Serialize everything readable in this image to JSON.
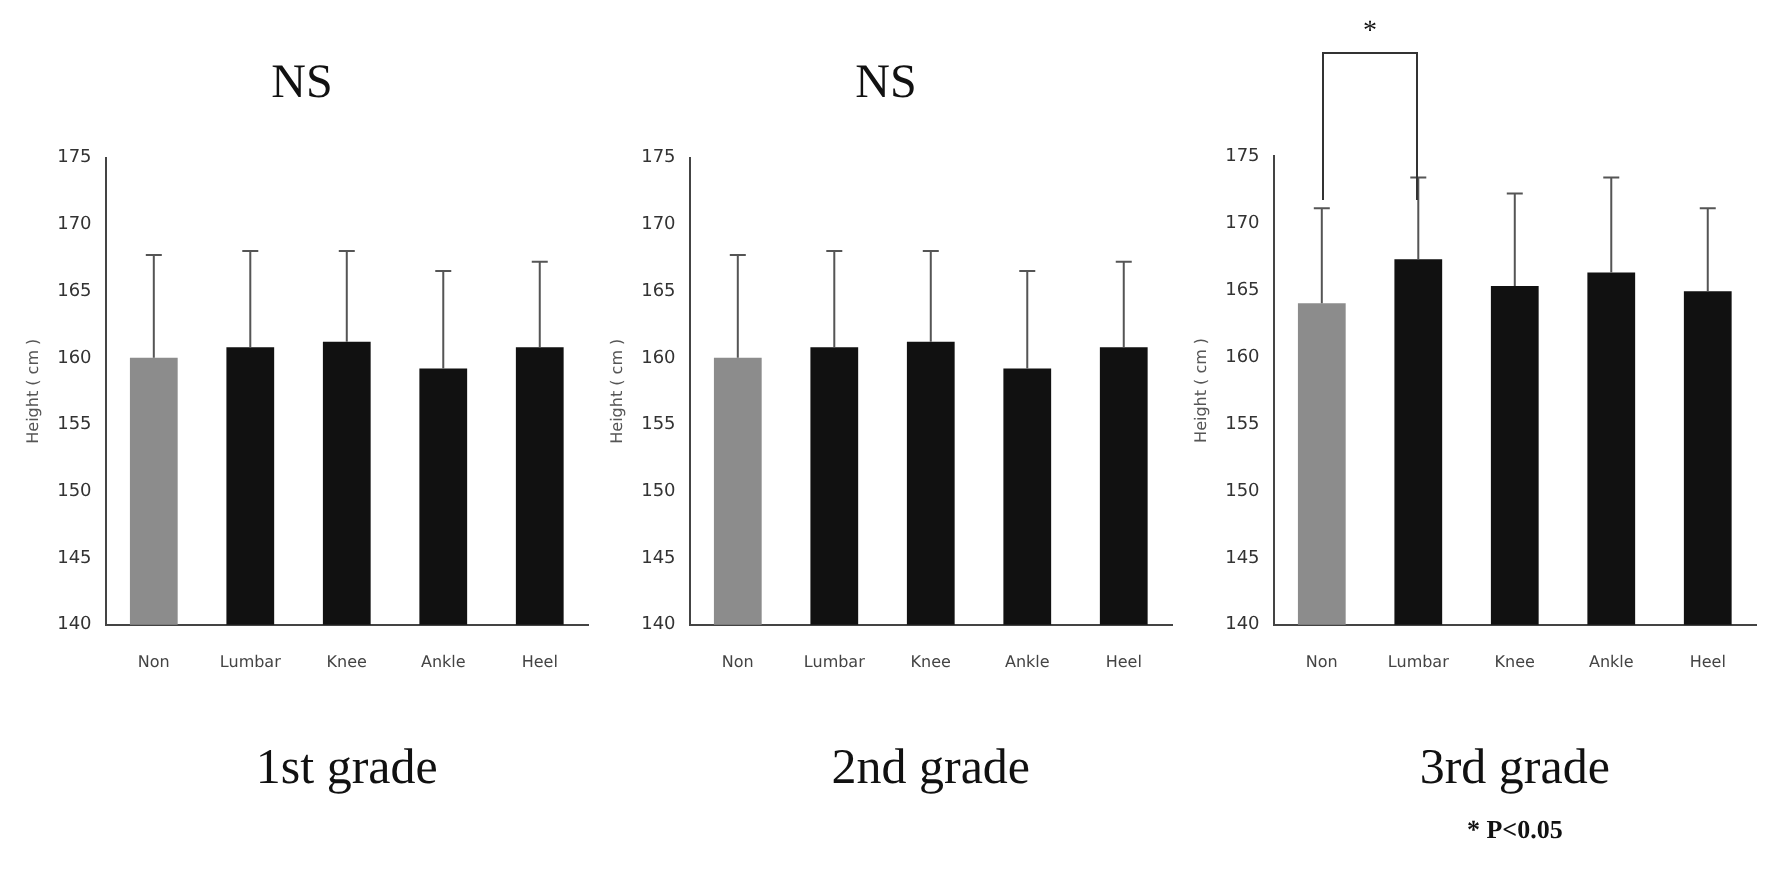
{
  "chart_data": [
    {
      "type": "bar",
      "title": "NS",
      "xlabel": "1st grade",
      "ylabel": "Height ( cm )",
      "categories": [
        "Non",
        "Lumbar",
        "Knee",
        "Ankle",
        "Heel"
      ],
      "values": [
        160,
        160.8,
        161.2,
        159.2,
        160.8
      ],
      "colors": [
        "#8c8c8c",
        "#111111",
        "#111111",
        "#111111",
        "#111111"
      ],
      "errors": [
        [
          160,
          167.7
        ],
        [
          160.8,
          168
        ],
        [
          161.2,
          168
        ],
        [
          159.2,
          166.5
        ],
        [
          160.8,
          167.2
        ]
      ],
      "ylim": [
        140,
        175
      ],
      "yticks": [
        140,
        145,
        150,
        155,
        160,
        165,
        170,
        175
      ],
      "grid": false
    },
    {
      "type": "bar",
      "title": "NS",
      "xlabel": "2nd grade",
      "ylabel": "Height ( cm )",
      "categories": [
        "Non",
        "Lumbar",
        "Knee",
        "Ankle",
        "Heel"
      ],
      "values": [
        160,
        160.8,
        161.2,
        159.2,
        160.8
      ],
      "colors": [
        "#8c8c8c",
        "#111111",
        "#111111",
        "#111111",
        "#111111"
      ],
      "errors": [
        [
          160,
          167.7
        ],
        [
          160.8,
          168
        ],
        [
          161.2,
          168
        ],
        [
          159.2,
          166.5
        ],
        [
          160.8,
          167.2
        ]
      ],
      "ylim": [
        140,
        175
      ],
      "yticks": [
        140,
        145,
        150,
        155,
        160,
        165,
        170,
        175
      ],
      "grid": false
    },
    {
      "type": "bar",
      "xlabel": "3rd grade",
      "ylabel": "Height ( cm )",
      "categories": [
        "Non",
        "Lumbar",
        "Knee",
        "Ankle",
        "Heel"
      ],
      "values": [
        164,
        167.3,
        165.3,
        166.3,
        164.9
      ],
      "colors": [
        "#8c8c8c",
        "#111111",
        "#111111",
        "#111111",
        "#111111"
      ],
      "errors": [
        [
          164,
          171.1
        ],
        [
          167.3,
          173.4
        ],
        [
          165.3,
          172.2
        ],
        [
          166.3,
          173.4
        ],
        [
          164.9,
          171.1
        ]
      ],
      "ylim": [
        140,
        175
      ],
      "yticks": [
        140,
        145,
        150,
        155,
        160,
        165,
        170,
        175
      ],
      "grid": false,
      "annotations": [
        "*",
        "* P<0.05"
      ]
    }
  ]
}
